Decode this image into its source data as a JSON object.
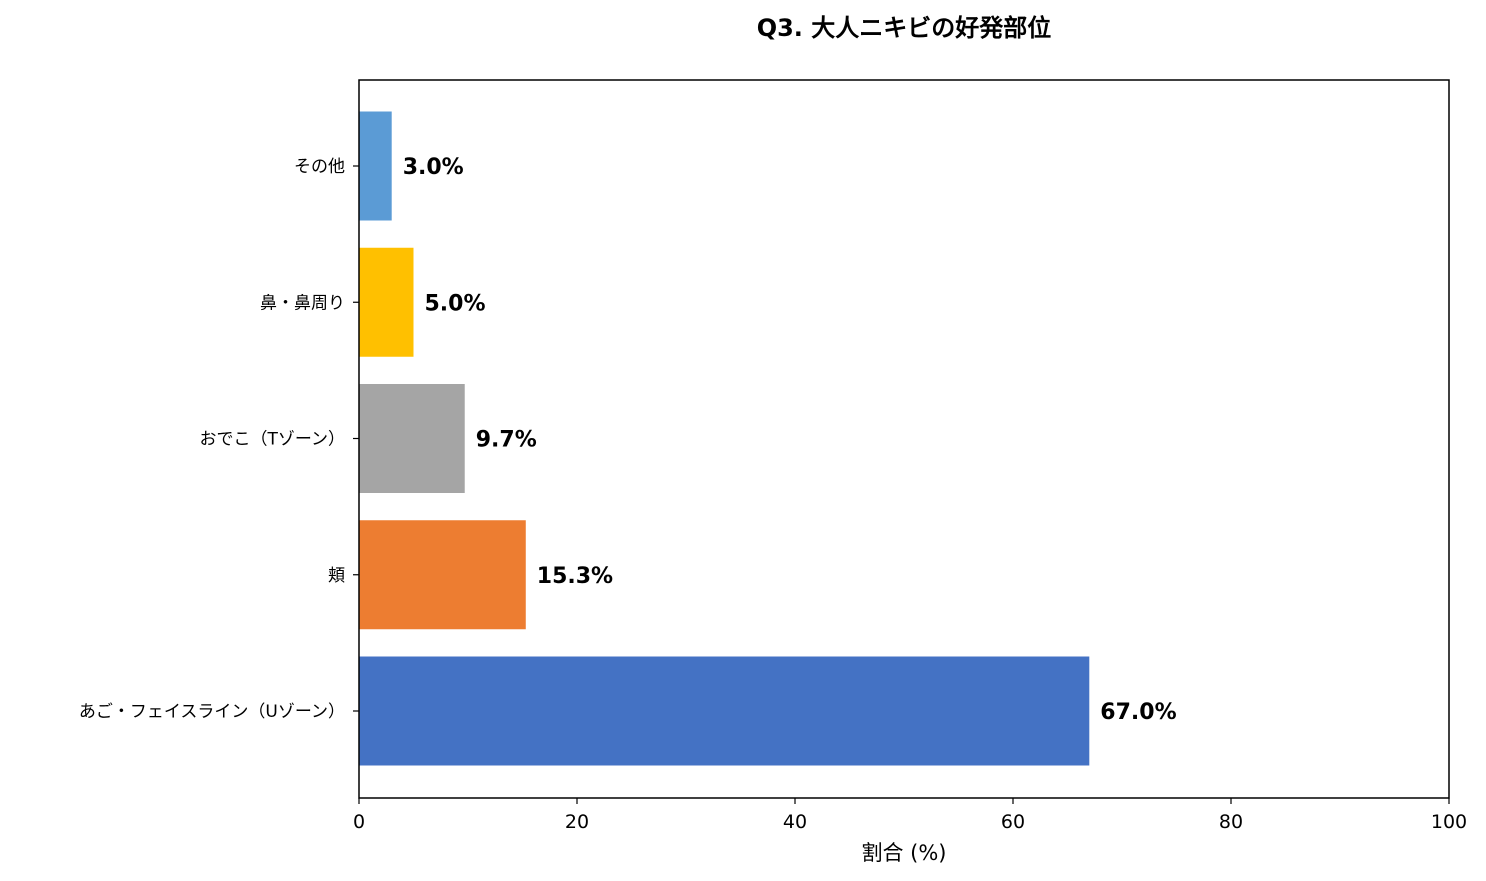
{
  "chart_data": {
    "type": "bar",
    "orientation": "horizontal",
    "title": "Q3. 大人ニキビの好発部位",
    "xlabel": "割合 (%)",
    "ylabel": "",
    "xlim": [
      0,
      100
    ],
    "xticks": [
      0,
      20,
      40,
      60,
      80,
      100
    ],
    "grid": false,
    "categories": [
      "あご・フェイスライン（Uゾーン）",
      "頬",
      "おでこ（Tゾーン）",
      "鼻・鼻周り",
      "その他"
    ],
    "values": [
      67.0,
      15.3,
      9.7,
      5.0,
      3.0
    ],
    "value_labels": [
      "67.0%",
      "15.3%",
      "9.7%",
      "5.0%",
      "3.0%"
    ],
    "colors": [
      "#4472C4",
      "#ED7D31",
      "#A5A5A5",
      "#FFC000",
      "#5B9BD5"
    ]
  }
}
